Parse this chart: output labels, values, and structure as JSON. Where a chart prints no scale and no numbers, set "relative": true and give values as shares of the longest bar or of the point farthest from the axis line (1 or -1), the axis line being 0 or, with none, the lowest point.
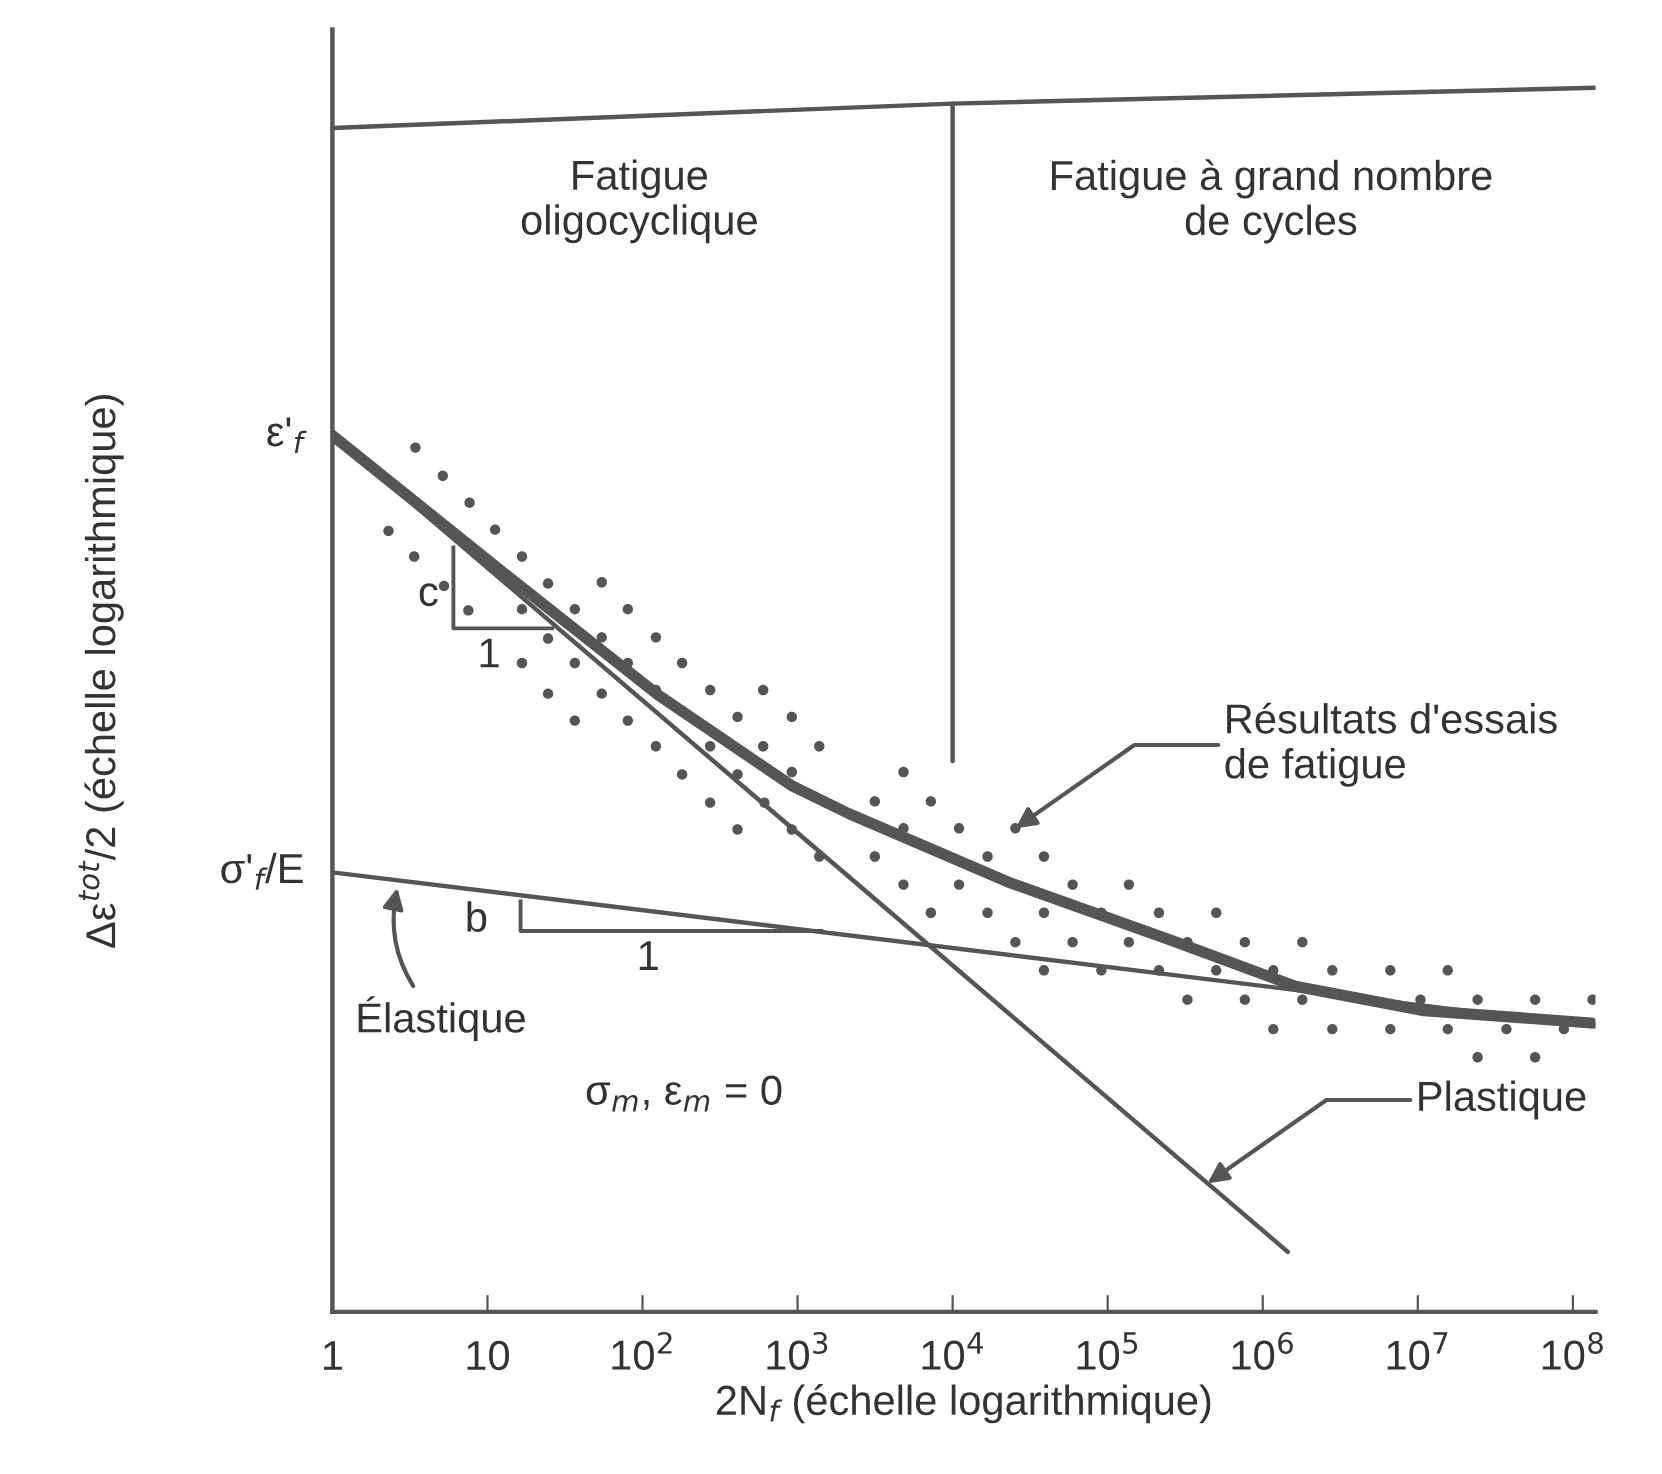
{
  "chart_data": {
    "type": "line",
    "relative": true,
    "log": "x",
    "tick_labels": "x",
    "marker": "none",
    "line_style": "solid",
    "xlabel": "2N$_{f}$ (échelle logarithmique)",
    "ylabel": "Δε$^{tot}$/2 (échelle logarithmique)",
    "xlim": [
      1,
      140000000
    ],
    "xticks": [
      1,
      10,
      {
        "value": 100,
        "label": "10$^{2}$"
      },
      {
        "value": 1000,
        "label": "10$^{3}$"
      },
      {
        "value": 10000,
        "label": "10$^{4}$"
      },
      {
        "value": 100000,
        "label": "10$^{5}$"
      },
      {
        "value": 1000000,
        "label": "10$^{6}$"
      },
      {
        "value": 10000000,
        "label": "10$^{7}$"
      },
      {
        "value": 100000000,
        "label": "10$^{8}$"
      }
    ],
    "series": [
      {
        "color": "#555555",
        "x": [
          1,
          12.9,
          126,
          912,
          2140,
          22900,
          251000,
          1620000,
          11000000,
          132000000
        ],
        "values": [
          0.716,
          0.603,
          0.504,
          0.43,
          0.407,
          0.351,
          0.304,
          0.266,
          0.246,
          0.236
        ]
      },
      {
        "color": "#555555",
        "x": [
          1,
          140000000
        ],
        "values": [
          0.359,
          0.233
        ]
      },
      {
        "color": "#555555",
        "x": [
          1,
          1450000
        ],
        "values": [
          0.716,
          0.049
        ]
      },
      {
        "type": "scatter",
        "marker": "circle",
        "color": "#555555",
        "x": [
          3.43,
          5.15,
          7.67,
          2.3,
          11.2,
          3.37,
          16.7,
          5.25,
          24.6,
          54.6,
          7.53,
          16.7,
          36.6,
          80.4,
          24.6,
          54.6,
          122,
          16.7,
          36.6,
          80.4,
          180,
          24.6,
          54.6,
          122,
          273,
          600,
          36.6,
          80.4,
          410,
          918,
          122,
          273,
          600,
          1380,
          180,
          410,
          918,
          273,
          611,
          410,
          918,
          1380,
          4820,
          3150,
          7240,
          4820,
          11000,
          25400,
          3150,
          16800,
          38800,
          4820,
          11000,
          25400,
          59400,
          137000,
          7240,
          16800,
          38800,
          91000,
          214000,
          501000,
          25400,
          59400,
          137000,
          327000,
          767000,
          1800000,
          38800,
          91000,
          214000,
          501000,
          1170000,
          2810000,
          6650000,
          15600000,
          327000,
          767000,
          1800000,
          10400000,
          24300000,
          57100000,
          134000000,
          1170000,
          2810000,
          6650000,
          15600000,
          37300000,
          87500000,
          24300000,
          57100000
        ],
        "values": [
          0.706,
          0.683,
          0.661,
          0.638,
          0.639,
          0.617,
          0.617,
          0.593,
          0.595,
          0.596,
          0.573,
          0.574,
          0.574,
          0.574,
          0.55,
          0.551,
          0.551,
          0.53,
          0.53,
          0.53,
          0.53,
          0.505,
          0.505,
          0.508,
          0.508,
          0.508,
          0.483,
          0.483,
          0.486,
          0.486,
          0.462,
          0.462,
          0.462,
          0.462,
          0.439,
          0.439,
          0.441,
          0.416,
          0.416,
          0.394,
          0.394,
          0.372,
          0.441,
          0.417,
          0.417,
          0.395,
          0.395,
          0.395,
          0.372,
          0.372,
          0.372,
          0.349,
          0.349,
          null,
          0.349,
          0.349,
          0.326,
          0.326,
          0.326,
          0.326,
          0.326,
          0.326,
          0.302,
          0.302,
          0.302,
          0.302,
          0.302,
          0.302,
          0.279,
          0.279,
          0.279,
          0.279,
          0.279,
          0.279,
          0.279,
          0.279,
          0.255,
          0.255,
          0.255,
          0.255,
          0.255,
          0.255,
          0.255,
          0.231,
          0.231,
          0.231,
          0.231,
          0.231,
          0.231,
          0.208,
          0.208
        ]
      },
      {
        "color": "#555555",
        "x": [
          1,
          10000,
          140000000
        ],
        "values": [
          0.967,
          0.987,
          1.0
        ]
      },
      {
        "color": "#555555",
        "x": [
          10000,
          10000
        ],
        "values": [
          0.987,
          0.45
        ]
      }
    ],
    "annotations": [
      {
        "text": "ε'$_{f}$",
        "x": 1,
        "y": 0.716
      },
      {
        "text": "σ'$_{f}$/E",
        "x": 1,
        "y": 0.359
      },
      "Fatigue\noligocyclique",
      "Fatigue à grand nombre\nde cycles",
      {
        "text": "Résultats d'essais\nde fatigue",
        "x": 25400,
        "y": 0.395
      },
      {
        "text": "Élastique",
        "x": 2.7,
        "y": 0.353
      },
      {
        "text": "Plastique",
        "x": 440000,
        "y": 0.105
      },
      "σ$_{m}$, ε$_{m}$ = 0",
      "c",
      "1",
      "b",
      "1"
    ]
  }
}
